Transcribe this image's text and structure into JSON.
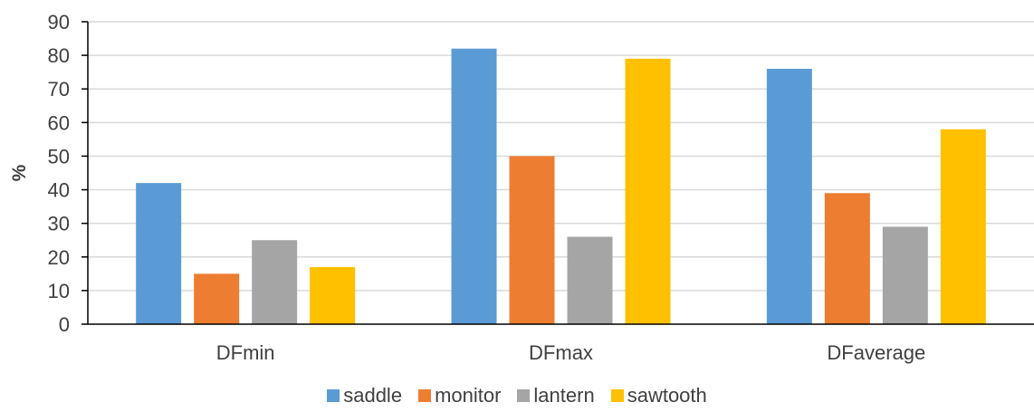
{
  "chart_data": {
    "type": "bar",
    "title": "",
    "xlabel": "",
    "ylabel": "%",
    "ylim": [
      0,
      90
    ],
    "yticks": [
      0,
      10,
      20,
      30,
      40,
      50,
      60,
      70,
      80,
      90
    ],
    "grid": true,
    "legend_position": "bottom",
    "categories": [
      "DFmin",
      "DFmax",
      "DFaverage"
    ],
    "series": [
      {
        "name": "saddle",
        "color": "#5B9BD5",
        "values": [
          42,
          82,
          76
        ]
      },
      {
        "name": "monitor",
        "color": "#ED7D31",
        "values": [
          15,
          50,
          39
        ]
      },
      {
        "name": "lantern",
        "color": "#A5A5A5",
        "values": [
          25,
          26,
          29
        ]
      },
      {
        "name": "sawtooth",
        "color": "#FFC000",
        "values": [
          17,
          79,
          58
        ]
      }
    ]
  }
}
